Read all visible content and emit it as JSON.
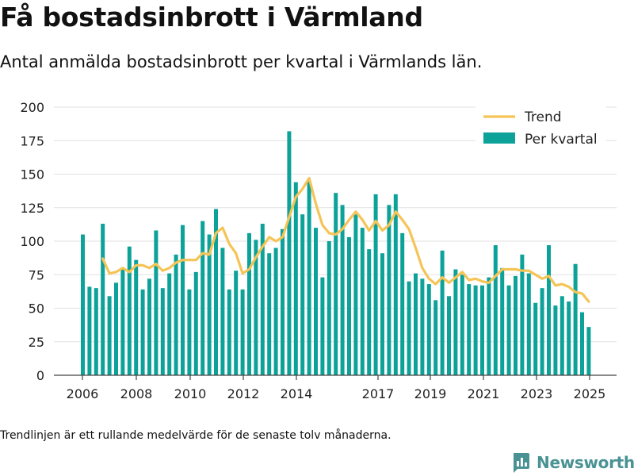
{
  "title": "Få bostadsinbrott i Värmland",
  "subtitle": "Antal anmälda bostadsinbrott per kvartal i Värmlands län.",
  "footnote": "Trendlinjen är ett rullande medelvärde för de senaste tolv månaderna.",
  "brand": {
    "name": "Newsworthy",
    "icon": "newsworthy-chart-logo"
  },
  "colors": {
    "bars": "#0ca299",
    "trend": "#f5c457",
    "grid": "#e1e1e1",
    "axis": "#444444",
    "brand": "#4a9294"
  },
  "chart_data": {
    "type": "bar",
    "x_tick_labels": [
      "2006",
      "2008",
      "2010",
      "2012",
      "2014",
      "2017",
      "2019",
      "2021",
      "2023",
      "2025"
    ],
    "y_tick_labels": [
      "0",
      "25",
      "50",
      "75",
      "100",
      "125",
      "150",
      "175",
      "200"
    ],
    "ylim": [
      0,
      200
    ],
    "grid": true,
    "legend": {
      "position": "top-right",
      "entries": [
        "Trend",
        "Per kvartal"
      ]
    },
    "series": [
      {
        "name": "Per kvartal",
        "kind": "bar",
        "values": [
          105,
          66,
          65,
          113,
          59,
          69,
          79,
          96,
          86,
          64,
          72,
          108,
          65,
          76,
          90,
          112,
          64,
          77,
          115,
          105,
          124,
          95,
          64,
          78,
          64,
          106,
          101,
          113,
          91,
          95,
          109,
          182,
          144,
          120,
          145,
          110,
          73,
          100,
          136,
          127,
          103,
          120,
          110,
          94,
          135,
          91,
          127,
          135,
          106,
          70,
          76,
          72,
          68,
          56,
          93,
          59,
          79,
          75,
          68,
          67,
          67,
          73,
          97,
          80,
          67,
          74,
          90,
          76,
          54,
          65,
          97,
          52,
          59,
          55,
          83,
          47,
          36
        ]
      },
      {
        "name": "Trend",
        "kind": "line",
        "values": [
          null,
          null,
          null,
          87,
          76,
          77,
          80,
          77,
          82,
          82,
          80,
          83,
          78,
          80,
          84,
          86,
          86,
          86,
          91,
          90,
          106,
          110,
          98,
          91,
          76,
          79,
          88,
          96,
          103,
          100,
          103,
          118,
          133,
          139,
          147,
          128,
          112,
          106,
          105,
          109,
          116,
          122,
          116,
          108,
          115,
          108,
          112,
          122,
          116,
          109,
          95,
          80,
          72,
          68,
          73,
          69,
          73,
          77,
          71,
          72,
          70,
          69,
          74,
          79,
          79,
          79,
          78,
          78,
          75,
          72,
          74,
          67,
          68,
          66,
          62,
          61,
          55
        ]
      }
    ]
  }
}
